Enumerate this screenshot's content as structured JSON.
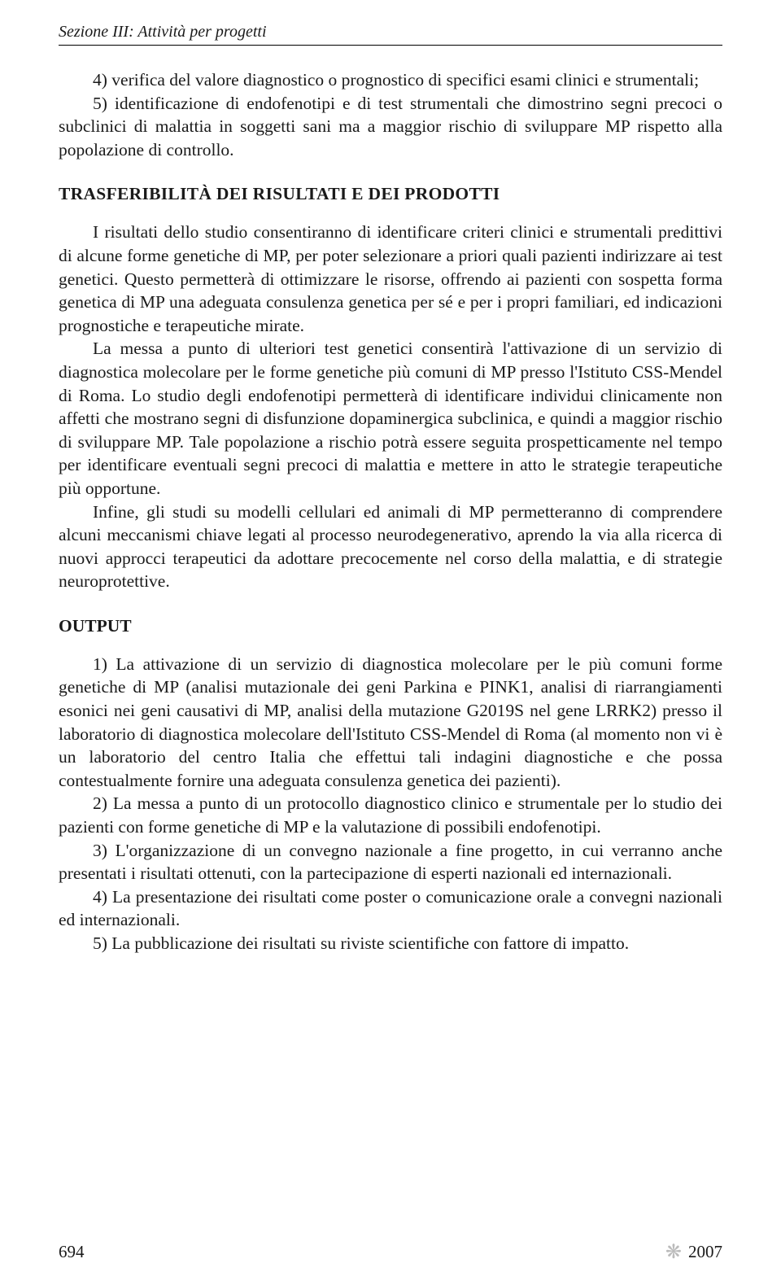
{
  "header": {
    "section_title": "Sezione III: Attività per progetti"
  },
  "intro": {
    "item4": "4) verifica del valore diagnostico o prognostico di specifici esami clinici e strumentali;",
    "item5": "5) identificazione di endofenotipi e di test strumentali che dimostrino segni precoci o subclinici di malattia in soggetti sani ma a maggior rischio di sviluppare MP rispetto alla popolazione di controllo."
  },
  "trasferibilita": {
    "heading": "TRASFERIBILITÀ DEI RISULTATI E DEI PRODOTTI",
    "p1": "I risultati dello studio consentiranno di identificare criteri clinici e strumentali predittivi di alcune forme genetiche di MP, per poter selezionare a priori quali pazienti indirizzare ai test genetici. Questo permetterà di ottimizzare le risorse, offrendo ai pazienti con sospetta forma genetica di MP una adeguata consulenza genetica per sé e per i propri familiari, ed indicazioni prognostiche e terapeutiche mirate.",
    "p2": "La messa a punto di ulteriori test genetici consentirà l'attivazione di un servizio di diagnostica molecolare per le forme genetiche più comuni di MP presso l'Istituto CSS-Mendel di Roma. Lo studio degli endofenotipi permetterà di identificare individui clinicamente non affetti che mostrano segni di disfunzione dopaminergica subclinica, e quindi a maggior rischio di sviluppare MP. Tale popolazione a rischio potrà essere seguita prospetticamente nel tempo per identificare eventuali segni precoci di malattia e mettere in atto le strategie terapeutiche più opportune.",
    "p3": "Infine, gli studi su modelli cellulari ed animali di MP permetteranno di comprendere alcuni meccanismi chiave legati al processo neurodegenerativo, aprendo la via alla ricerca di nuovi approcci terapeutici da adottare precocemente nel corso della malattia, e di strategie neuroprotettive."
  },
  "output": {
    "heading": "OUTPUT",
    "item1": "1) La attivazione di un servizio di diagnostica molecolare per le più comuni forme genetiche di MP (analisi mutazionale dei geni Parkina e PINK1, analisi di riarrangiamenti esonici nei geni causativi di MP, analisi della mutazione G2019S nel gene LRRK2) presso il laboratorio di diagnostica molecolare dell'Istituto CSS-Mendel di Roma (al momento non vi è un laboratorio del centro Italia che effettui tali indagini diagnostiche e che possa contestualmente fornire una adeguata consulenza genetica dei pazienti).",
    "item2": "2) La messa a punto di un protocollo diagnostico clinico e strumentale per lo studio dei pazienti con forme genetiche di MP e la valutazione di possibili endofenotipi.",
    "item3": "3) L'organizzazione di un convegno nazionale a fine progetto, in cui verranno anche presentati i risultati ottenuti, con la partecipazione di esperti nazionali ed internazionali.",
    "item4": "4) La presentazione dei risultati come poster o comunicazione orale a convegni nazionali ed internazionali.",
    "item5": "5) La pubblicazione dei risultati su riviste scientifiche con fattore di impatto."
  },
  "footer": {
    "page_number": "694",
    "year": "2007"
  }
}
